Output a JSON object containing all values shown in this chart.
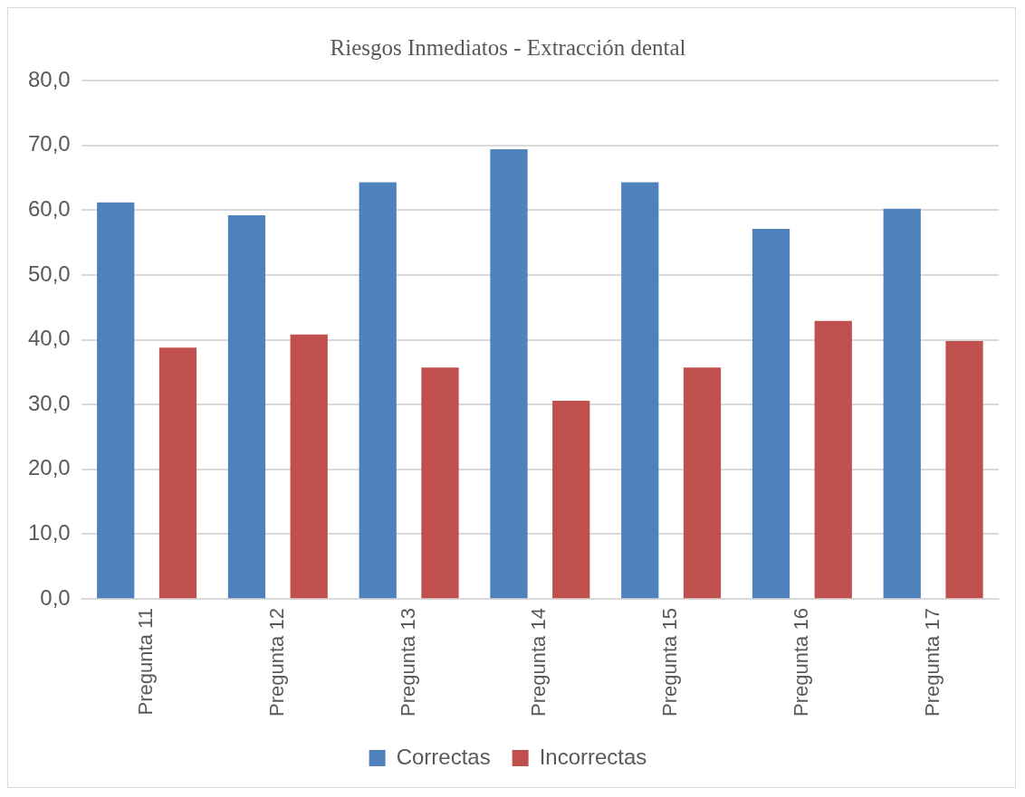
{
  "chart_data": {
    "type": "bar",
    "title": "Riesgos Inmediatos - Extracción dental",
    "categories": [
      "Pregunta 11",
      "Pregunta 12",
      "Pregunta 13",
      "Pregunta 14",
      "Pregunta 15",
      "Pregunta 16",
      "Pregunta 17"
    ],
    "series": [
      {
        "name": "Correctas",
        "color": "#4f81bd",
        "values": [
          61.2,
          59.2,
          64.3,
          69.4,
          64.3,
          57.1,
          60.2
        ]
      },
      {
        "name": "Incorrectas",
        "color": "#c0504d",
        "values": [
          38.8,
          40.8,
          35.7,
          30.6,
          35.7,
          42.9,
          39.8
        ]
      }
    ],
    "ylim": [
      0,
      80
    ],
    "yticks": [
      {
        "value": 0,
        "label": "0,0"
      },
      {
        "value": 10,
        "label": "10,0"
      },
      {
        "value": 20,
        "label": "20,0"
      },
      {
        "value": 30,
        "label": "30,0"
      },
      {
        "value": 40,
        "label": "40,0"
      },
      {
        "value": 50,
        "label": "50,0"
      },
      {
        "value": 60,
        "label": "60,0"
      },
      {
        "value": 70,
        "label": "70,0"
      },
      {
        "value": 80,
        "label": "80,0"
      }
    ],
    "grid": "y",
    "legend": "bottom"
  }
}
